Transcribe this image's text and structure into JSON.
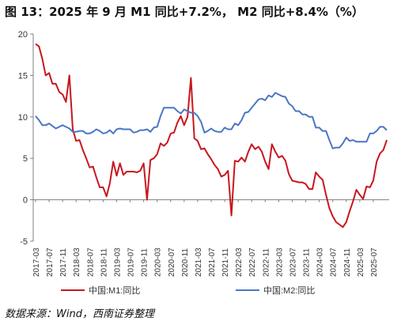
{
  "title": "图 13：2025 年 9 月 M1 同比+7.2%， M2 同比+8.4%（%）",
  "source": "数据来源：Wind，西南证券整理",
  "colors": {
    "m1": "#c8171e",
    "m2": "#4a76c6",
    "axis": "#7f7f7f"
  },
  "chart_data": {
    "type": "line",
    "title": "图 13：2025 年 9 月 M1 同比+7.2%， M2 同比+8.4%（%）",
    "xlabel": "",
    "ylabel": "",
    "ylim": [
      -5,
      20
    ],
    "yticks": [
      -5,
      0,
      5,
      10,
      15,
      20
    ],
    "grid": false,
    "legend_position": "bottom",
    "x_tick_labels": [
      "2017-03",
      "2017-07",
      "2017-11",
      "2018-03",
      "2018-07",
      "2018-11",
      "2019-03",
      "2019-07",
      "2019-11",
      "2020-03",
      "2020-07",
      "2020-11",
      "2021-03",
      "2021-07",
      "2021-11",
      "2022-03",
      "2022-07",
      "2022-11",
      "2023-03",
      "2023-07",
      "2023-11",
      "2024-03",
      "2024-07",
      "2024-11",
      "2025-03",
      "2025-07"
    ],
    "x_start": "2017-03",
    "x_end": "2025-09",
    "series": [
      {
        "name": "中国:M1:同比",
        "color": "#c8171e",
        "values": [
          18.8,
          18.5,
          17.0,
          15.0,
          15.3,
          14.0,
          14.0,
          13.0,
          12.7,
          11.8,
          15.0,
          8.5,
          7.1,
          7.2,
          6.0,
          5.0,
          3.9,
          4.0,
          2.7,
          1.5,
          1.5,
          0.4,
          2.0,
          4.6,
          2.9,
          4.4,
          3.0,
          3.4,
          3.4,
          3.4,
          3.3,
          3.5,
          4.4,
          0.0,
          4.8,
          5.0,
          5.5,
          6.8,
          6.5,
          6.9,
          8.0,
          8.1,
          9.3,
          10.1,
          9.0,
          10.0,
          14.7,
          7.4,
          7.1,
          6.1,
          6.2,
          5.5,
          4.9,
          4.2,
          3.7,
          2.8,
          3.0,
          3.5,
          -1.9,
          4.7,
          4.6,
          5.1,
          4.6,
          5.8,
          6.7,
          6.1,
          6.4,
          5.8,
          4.6,
          3.7,
          6.7,
          5.8,
          5.1,
          5.3,
          4.7,
          3.1,
          2.3,
          2.2,
          2.1,
          2.1,
          1.9,
          1.3,
          1.3,
          3.3,
          2.8,
          2.4,
          0.6,
          -1.0,
          -2.0,
          -2.7,
          -3.0,
          -3.3,
          -2.7,
          -1.4,
          -0.2,
          1.2,
          0.6,
          0.1,
          1.6,
          1.5,
          2.3,
          4.6,
          5.6,
          6.0,
          7.2
        ]
      },
      {
        "name": "中国:M2:同比",
        "color": "#4a76c6",
        "values": [
          10.1,
          9.6,
          9.0,
          9.0,
          9.2,
          8.9,
          8.6,
          8.8,
          9.0,
          8.8,
          8.6,
          8.2,
          8.2,
          8.3,
          8.3,
          8.0,
          8.0,
          8.2,
          8.5,
          8.3,
          8.0,
          8.1,
          8.4,
          8.0,
          8.5,
          8.6,
          8.5,
          8.5,
          8.5,
          8.1,
          8.2,
          8.4,
          8.4,
          8.5,
          8.2,
          8.7,
          8.8,
          10.1,
          11.1,
          11.1,
          11.1,
          11.1,
          10.7,
          10.4,
          10.9,
          10.7,
          10.5,
          10.5,
          10.1,
          9.4,
          8.1,
          8.3,
          8.6,
          8.3,
          8.2,
          8.2,
          8.7,
          8.5,
          8.5,
          9.2,
          9.0,
          9.6,
          10.5,
          10.6,
          11.1,
          11.6,
          12.1,
          12.2,
          12.0,
          12.6,
          12.4,
          12.9,
          12.7,
          12.5,
          12.4,
          11.6,
          11.3,
          10.7,
          10.7,
          10.3,
          10.3,
          10.0,
          10.0,
          8.7,
          8.7,
          8.3,
          8.3,
          7.2,
          6.2,
          6.3,
          6.3,
          6.8,
          7.5,
          7.1,
          7.2,
          7.0,
          7.0,
          7.0,
          7.0,
          8.0,
          8.0,
          8.3,
          8.8,
          8.8,
          8.4
        ]
      }
    ]
  }
}
